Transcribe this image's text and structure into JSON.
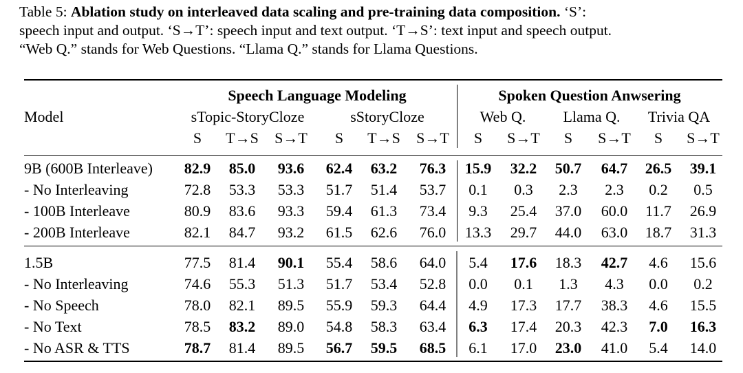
{
  "caption": {
    "label": "Table 5:",
    "title": "Ablation study on interleaved data scaling and pre-training data composition.",
    "line1_rest": "‘S’:",
    "line2": "speech input and output. ‘S→T’: speech input and text output. ‘T→S’: text input and speech output.",
    "line3": "“Web Q.” stands for Web Questions. “Llama Q.” stands for Llama Questions."
  },
  "header": {
    "model": "Model",
    "group1": "Speech Language Modeling",
    "group2": "Spoken Question Anwsering",
    "sub": [
      "sTopic-StoryCloze",
      "sStoryCloze",
      "Web Q.",
      "Llama Q.",
      "Trivia QA"
    ],
    "cols": [
      "S",
      "T→S",
      "S→T",
      "S",
      "T→S",
      "S→T",
      "S",
      "S→T",
      "S",
      "S→T",
      "S",
      "S→T"
    ]
  },
  "rows": [
    {
      "model": "9B (600B Interleave)",
      "values": [
        "82.9",
        "85.0",
        "93.6",
        "62.4",
        "63.2",
        "76.3",
        "15.9",
        "32.2",
        "50.7",
        "64.7",
        "26.5",
        "39.1"
      ],
      "bold": [
        0,
        1,
        2,
        3,
        4,
        5,
        6,
        7,
        8,
        9,
        10,
        11
      ]
    },
    {
      "model": "- No Interleaving",
      "values": [
        "72.8",
        "53.3",
        "53.3",
        "51.7",
        "51.4",
        "53.7",
        "0.1",
        "0.3",
        "2.3",
        "2.3",
        "0.2",
        "0.5"
      ],
      "bold": []
    },
    {
      "model": "- 100B Interleave",
      "values": [
        "80.9",
        "83.6",
        "93.3",
        "59.4",
        "61.3",
        "73.4",
        "9.3",
        "25.4",
        "37.0",
        "60.0",
        "11.7",
        "26.9"
      ],
      "bold": []
    },
    {
      "model": "- 200B Interleave",
      "values": [
        "82.1",
        "84.7",
        "93.2",
        "61.5",
        "62.6",
        "76.0",
        "13.3",
        "29.7",
        "44.0",
        "63.0",
        "18.7",
        "31.3"
      ],
      "bold": []
    },
    {
      "model": "1.5B",
      "values": [
        "77.5",
        "81.4",
        "90.1",
        "55.4",
        "58.6",
        "64.0",
        "5.4",
        "17.6",
        "18.3",
        "42.7",
        "4.6",
        "15.6"
      ],
      "bold": [
        2,
        7,
        9
      ]
    },
    {
      "model": "- No Interleaving",
      "values": [
        "74.6",
        "55.3",
        "51.3",
        "51.7",
        "53.4",
        "52.8",
        "0.0",
        "0.1",
        "1.3",
        "4.3",
        "0.0",
        "0.2"
      ],
      "bold": []
    },
    {
      "model": "- No Speech",
      "values": [
        "78.0",
        "82.1",
        "89.5",
        "55.9",
        "59.3",
        "64.4",
        "4.9",
        "17.3",
        "17.7",
        "38.3",
        "4.6",
        "15.5"
      ],
      "bold": []
    },
    {
      "model": "- No Text",
      "values": [
        "78.5",
        "83.2",
        "89.0",
        "54.8",
        "58.3",
        "63.4",
        "6.3",
        "17.4",
        "20.3",
        "42.3",
        "7.0",
        "16.3"
      ],
      "bold": [
        1,
        6,
        10,
        11
      ]
    },
    {
      "model": "- No ASR & TTS",
      "values": [
        "78.7",
        "81.4",
        "89.5",
        "56.7",
        "59.5",
        "68.5",
        "6.1",
        "17.0",
        "23.0",
        "41.0",
        "5.4",
        "14.0"
      ],
      "bold": [
        0,
        3,
        4,
        5,
        8
      ]
    }
  ]
}
